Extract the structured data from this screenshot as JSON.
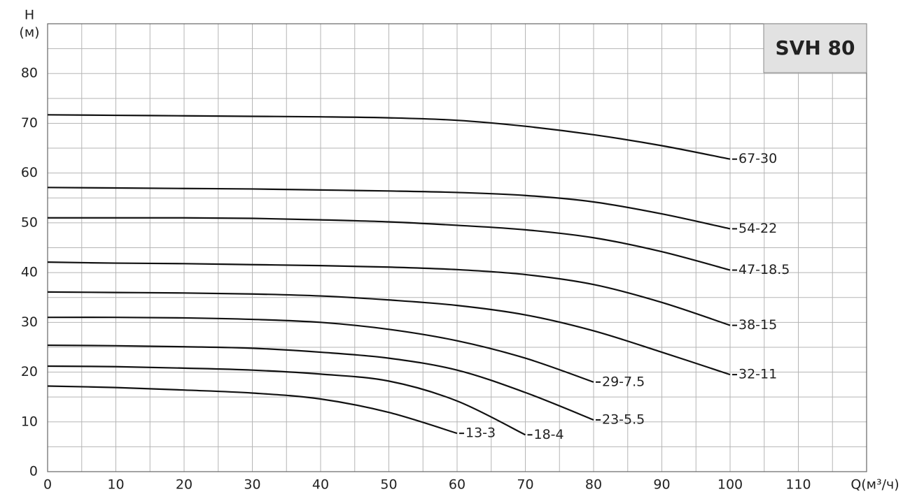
{
  "chart_data": {
    "type": "line",
    "title": "SVH 80",
    "x_label": "Q(м³/ч)",
    "y_label": "H",
    "y_unit": "(м)",
    "x": [
      0,
      10,
      20,
      30,
      40,
      50,
      60,
      70,
      80,
      90,
      100
    ],
    "series": [
      {
        "name": "67-30",
        "color": "#111111",
        "values": [
          71.7,
          71.6,
          71.5,
          71.4,
          71.3,
          71.1,
          70.6,
          69.4,
          67.7,
          65.5,
          62.8
        ]
      },
      {
        "name": "54-22",
        "color": "#111111",
        "values": [
          57.1,
          57.0,
          56.9,
          56.8,
          56.6,
          56.4,
          56.1,
          55.5,
          54.2,
          51.8,
          48.8
        ]
      },
      {
        "name": "47-18.5",
        "color": "#111111",
        "values": [
          51.0,
          51.0,
          51.0,
          50.9,
          50.6,
          50.2,
          49.5,
          48.6,
          47.0,
          44.2,
          40.5
        ]
      },
      {
        "name": "38-15",
        "color": "#111111",
        "values": [
          42.1,
          41.9,
          41.8,
          41.6,
          41.4,
          41.1,
          40.6,
          39.6,
          37.6,
          34.0,
          29.4
        ]
      },
      {
        "name": "32-11",
        "color": "#111111",
        "values": [
          36.1,
          36.0,
          35.9,
          35.7,
          35.3,
          34.5,
          33.4,
          31.5,
          28.3,
          24.0,
          19.5
        ]
      },
      {
        "name": "29-7.5",
        "color": "#111111",
        "values": [
          31.0,
          31.0,
          30.9,
          30.6,
          30.0,
          28.6,
          26.3,
          22.8,
          18.0,
          null,
          null
        ]
      },
      {
        "name": "23-5.5",
        "color": "#111111",
        "values": [
          25.4,
          25.3,
          25.1,
          24.8,
          24.0,
          22.8,
          20.4,
          15.9,
          10.4,
          null,
          null
        ]
      },
      {
        "name": "18-4",
        "color": "#111111",
        "values": [
          21.2,
          21.1,
          20.8,
          20.4,
          19.6,
          18.2,
          14.2,
          7.4,
          null,
          null,
          null
        ]
      },
      {
        "name": "13-3",
        "color": "#111111",
        "values": [
          17.2,
          16.9,
          16.4,
          15.8,
          14.6,
          11.9,
          7.7,
          null,
          null,
          null,
          null
        ]
      }
    ],
    "xlim": [
      0,
      120
    ],
    "xticks": [
      0,
      10,
      20,
      30,
      40,
      50,
      60,
      70,
      80,
      90,
      100,
      110
    ],
    "ylim": [
      0,
      90
    ],
    "yticks": [
      0,
      10,
      20,
      30,
      40,
      50,
      60,
      70,
      80
    ],
    "grid": true
  }
}
